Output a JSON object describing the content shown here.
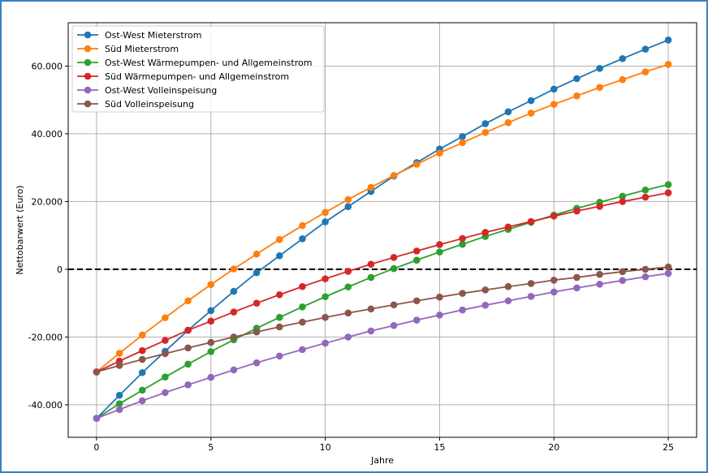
{
  "chart_data": {
    "type": "line",
    "title": "",
    "xlabel": "Jahre",
    "ylabel": "Nettobarwert (Euro)",
    "xlim": [
      -1.24,
      26.24
    ],
    "ylim": [
      -49600,
      72800
    ],
    "xticks": [
      0,
      5,
      10,
      15,
      20,
      25
    ],
    "xtick_labels": [
      "0",
      "5",
      "10",
      "15",
      "20",
      "25"
    ],
    "yticks": [
      -40000,
      -20000,
      0,
      20000,
      40000,
      60000
    ],
    "ytick_labels": [
      "-40.000",
      "-20.000",
      "0",
      "20.000",
      "40.000",
      "60.000"
    ],
    "grid": true,
    "legend_position": "top-left",
    "reference_line": {
      "y": 0,
      "style": "dashed",
      "color": "#000000"
    },
    "x": [
      0,
      1,
      2,
      3,
      4,
      5,
      6,
      7,
      8,
      9,
      10,
      11,
      12,
      13,
      14,
      15,
      16,
      17,
      18,
      19,
      20,
      21,
      22,
      23,
      24,
      25
    ],
    "series": [
      {
        "name": "Ost-West Mieterstrom",
        "color": "#1f77b4",
        "values": [
          -44000,
          -37200,
          -30500,
          -24200,
          -18000,
          -12200,
          -6500,
          -1000,
          4000,
          9000,
          14000,
          18500,
          23000,
          27500,
          31500,
          35500,
          39200,
          43000,
          46500,
          49800,
          53200,
          56300,
          59300,
          62200,
          65000,
          67700
        ]
      },
      {
        "name": "Süd Mieterstrom",
        "color": "#ff7f0e",
        "values": [
          -30300,
          -24800,
          -19400,
          -14300,
          -9300,
          -4500,
          100,
          4500,
          8800,
          12900,
          16800,
          20600,
          24200,
          27700,
          31000,
          34300,
          37400,
          40400,
          43300,
          46100,
          48700,
          51200,
          53700,
          56000,
          58300,
          60500
        ]
      },
      {
        "name": "Ost-West Wärmepumpen- und Allgemeinstrom",
        "color": "#2ca02c",
        "values": [
          -44000,
          -39700,
          -35700,
          -31800,
          -28000,
          -24300,
          -20800,
          -17400,
          -14200,
          -11100,
          -8100,
          -5200,
          -2400,
          200,
          2700,
          5100,
          7400,
          9700,
          11800,
          13900,
          16000,
          18000,
          19800,
          21600,
          23400,
          25000
        ]
      },
      {
        "name": "Süd Wärmepumpen- und Allgemeinstrom",
        "color": "#d62728",
        "values": [
          -30300,
          -27100,
          -24000,
          -21000,
          -18000,
          -15300,
          -12600,
          -10000,
          -7500,
          -5100,
          -2800,
          -600,
          1500,
          3500,
          5400,
          7300,
          9100,
          10900,
          12500,
          14100,
          15700,
          17200,
          18600,
          20000,
          21300,
          22600
        ]
      },
      {
        "name": "Ost-West Volleinspeisung",
        "color": "#9467bd",
        "values": [
          -44000,
          -41400,
          -38800,
          -36400,
          -34100,
          -31900,
          -29700,
          -27600,
          -25600,
          -23700,
          -21800,
          -20000,
          -18200,
          -16600,
          -15000,
          -13500,
          -12000,
          -10600,
          -9300,
          -8000,
          -6700,
          -5500,
          -4400,
          -3300,
          -2200,
          -1200
        ]
      },
      {
        "name": "Süd Volleinspeisung",
        "color": "#8c564b",
        "values": [
          -30300,
          -28400,
          -26600,
          -24900,
          -23200,
          -21600,
          -20000,
          -18500,
          -17000,
          -15600,
          -14200,
          -12900,
          -11700,
          -10500,
          -9300,
          -8200,
          -7100,
          -6100,
          -5100,
          -4200,
          -3200,
          -2400,
          -1500,
          -700,
          0,
          700
        ]
      }
    ]
  }
}
